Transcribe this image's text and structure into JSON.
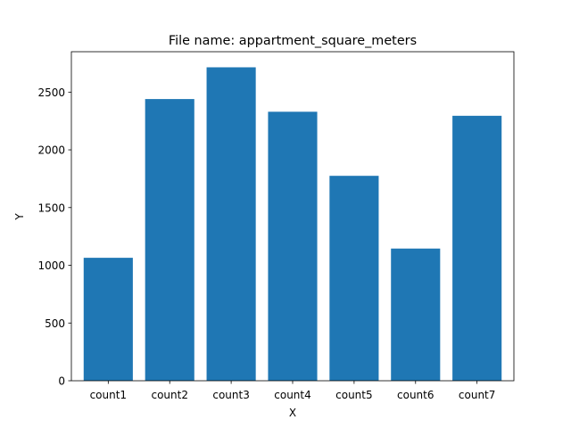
{
  "chart_data": {
    "type": "bar",
    "title": "File name: appartment_square_meters",
    "xlabel": "X",
    "ylabel": "Y",
    "categories": [
      "count1",
      "count2",
      "count3",
      "count4",
      "count5",
      "count6",
      "count7"
    ],
    "values": [
      1065,
      2440,
      2715,
      2330,
      1775,
      1145,
      2295
    ],
    "yticks": [
      0,
      500,
      1000,
      1500,
      2000,
      2500
    ],
    "ylim": [
      0,
      2850
    ],
    "grid": false,
    "legend": "none",
    "bar_color": "#1f77b4"
  }
}
